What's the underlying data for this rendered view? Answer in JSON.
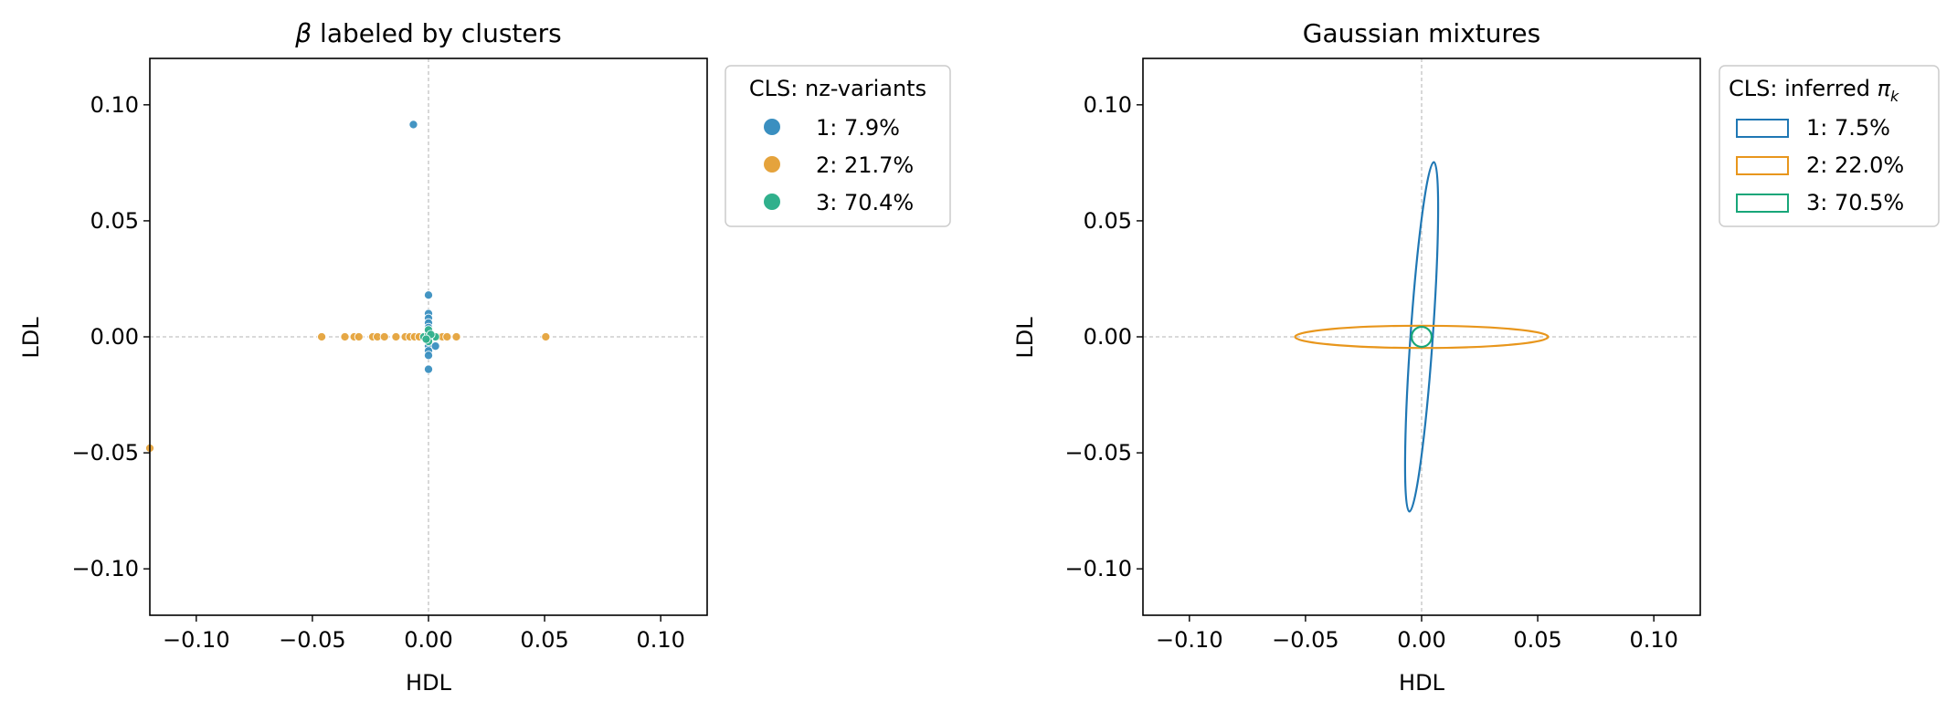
{
  "chart_data": [
    {
      "type": "scatter",
      "title_symbol": "β",
      "title_text": " labeled by clusters",
      "xlabel": "HDL",
      "ylabel": "LDL",
      "xlim": [
        -0.12,
        0.12
      ],
      "ylim": [
        -0.12,
        0.12
      ],
      "xticks": [
        -0.1,
        -0.05,
        0.0,
        0.05,
        0.1
      ],
      "yticks": [
        0.1,
        0.05,
        0.0,
        -0.05,
        -0.1
      ],
      "xtick_labels": [
        "−0.10",
        "−0.05",
        "0.00",
        "0.05",
        "0.10"
      ],
      "ytick_labels": [
        "0.10",
        "0.05",
        "0.00",
        "−0.05",
        "−0.10"
      ],
      "reference_lines": "dashed lines at x=0 and y=0",
      "legend": {
        "title": "CLS: nz-variants",
        "placement": "outside right, upper",
        "entries": [
          "1: 7.9%",
          "2: 21.7%",
          "3: 70.4%"
        ]
      },
      "colors": [
        "#3a8fc0",
        "#e5a33c",
        "#30b08c"
      ],
      "series": [
        {
          "cluster": 1,
          "points": [
            [
              -0.0065,
              0.0915
            ],
            [
              0.0,
              0.018
            ],
            [
              0.0,
              0.01
            ],
            [
              0.0,
              0.008
            ],
            [
              0.0,
              0.006
            ],
            [
              0.0,
              0.004
            ],
            [
              0.0,
              0.002
            ],
            [
              0.0,
              -0.004
            ],
            [
              0.0,
              -0.006
            ],
            [
              0.0,
              -0.008
            ],
            [
              0.0,
              -0.014
            ],
            [
              0.003,
              -0.004
            ],
            [
              0.001,
              0.001
            ]
          ]
        },
        {
          "cluster": 2,
          "points": [
            [
              -0.12,
              -0.048
            ],
            [
              -0.046,
              0.0
            ],
            [
              -0.036,
              0.0
            ],
            [
              -0.032,
              0.0
            ],
            [
              -0.03,
              0.0
            ],
            [
              -0.024,
              0.0
            ],
            [
              -0.022,
              0.0
            ],
            [
              -0.019,
              0.0
            ],
            [
              -0.014,
              0.0
            ],
            [
              -0.01,
              0.0
            ],
            [
              -0.008,
              0.0
            ],
            [
              -0.006,
              0.0
            ],
            [
              -0.004,
              0.0
            ],
            [
              0.004,
              0.0
            ],
            [
              0.006,
              0.0
            ],
            [
              0.008,
              0.0
            ],
            [
              0.012,
              0.0
            ],
            [
              0.0505,
              0.0
            ]
          ]
        },
        {
          "cluster": 3,
          "points": [
            [
              0.0,
              0.0
            ],
            [
              -0.001,
              0.0
            ],
            [
              0.001,
              0.0
            ],
            [
              0.002,
              0.0
            ],
            [
              -0.002,
              0.0
            ],
            [
              0.003,
              0.0
            ],
            [
              0.0,
              0.001
            ],
            [
              0.0,
              -0.001
            ],
            [
              0.0,
              0.003
            ],
            [
              0.0,
              -0.002
            ],
            [
              0.001,
              0.001
            ],
            [
              -0.001,
              -0.001
            ]
          ]
        }
      ]
    },
    {
      "type": "ellipse",
      "title_text": "Gaussian mixtures",
      "xlabel": "HDL",
      "ylabel": "LDL",
      "xlim": [
        -0.12,
        0.12
      ],
      "ylim": [
        -0.12,
        0.12
      ],
      "xticks": [
        -0.1,
        -0.05,
        0.0,
        0.05,
        0.1
      ],
      "yticks": [
        0.1,
        0.05,
        0.0,
        -0.05,
        -0.1
      ],
      "xtick_labels": [
        "−0.10",
        "−0.05",
        "0.00",
        "0.05",
        "0.10"
      ],
      "ytick_labels": [
        "0.10",
        "0.05",
        "0.00",
        "−0.05",
        "−0.10"
      ],
      "reference_lines": "dashed lines at x=0 and y=0",
      "legend": {
        "title_text": "CLS: inferred ",
        "title_symbol": "π",
        "title_subscript": "k",
        "placement": "outside right, upper",
        "entries": [
          "1: 7.5%",
          "2: 22.0%",
          "3: 70.5%"
        ]
      },
      "colors": [
        "#1f77b4",
        "#e8961c",
        "#18a679"
      ],
      "ellipses": [
        {
          "cluster": 1,
          "center": [
            0.0,
            0.0
          ],
          "semi_major": 0.0755,
          "semi_minor": 0.0048,
          "angle_deg_from_vertical": -4.0
        },
        {
          "cluster": 2,
          "center": [
            0.0,
            0.0
          ],
          "semi_major": 0.0545,
          "semi_minor": 0.0048,
          "angle_deg_from_vertical": 90.0
        },
        {
          "cluster": 3,
          "center": [
            0.0,
            0.0
          ],
          "semi_major": 0.0043,
          "semi_minor": 0.0043,
          "angle_deg_from_vertical": 0.0
        }
      ]
    }
  ]
}
